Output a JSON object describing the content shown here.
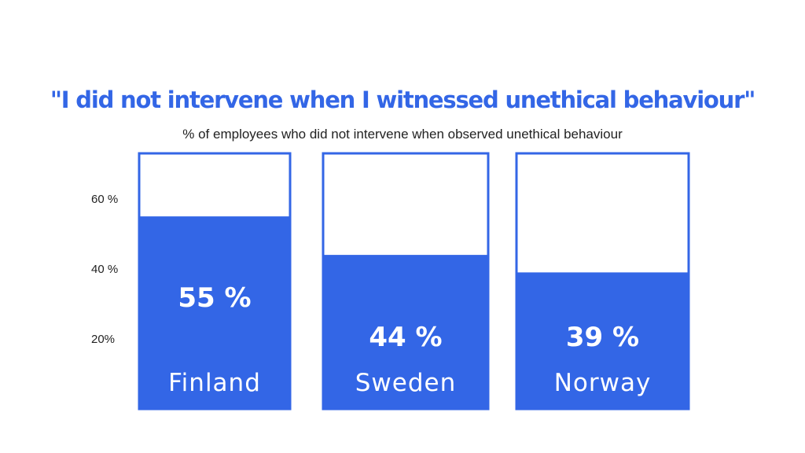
{
  "chart_data": {
    "type": "bar",
    "title": "\"I did not intervene when I witnessed unethical behaviour\"",
    "subtitle": "% of employees who did not intervene when observed unethical behaviour",
    "categories": [
      "Finland",
      "Sweden",
      "Norway"
    ],
    "values": [
      55,
      44,
      39
    ],
    "value_labels": [
      "55 %",
      "44 %",
      "39 %"
    ],
    "y_ticks": [
      {
        "value": 20,
        "label": "20%"
      },
      {
        "value": 40,
        "label": "40 %"
      },
      {
        "value": 60,
        "label": "60 %"
      }
    ],
    "ylim": [
      0,
      73
    ],
    "grid": false,
    "colors": {
      "bar": "#3366e6",
      "outline": "#3366e6",
      "text": "#222222",
      "title": "#3366e6"
    }
  }
}
